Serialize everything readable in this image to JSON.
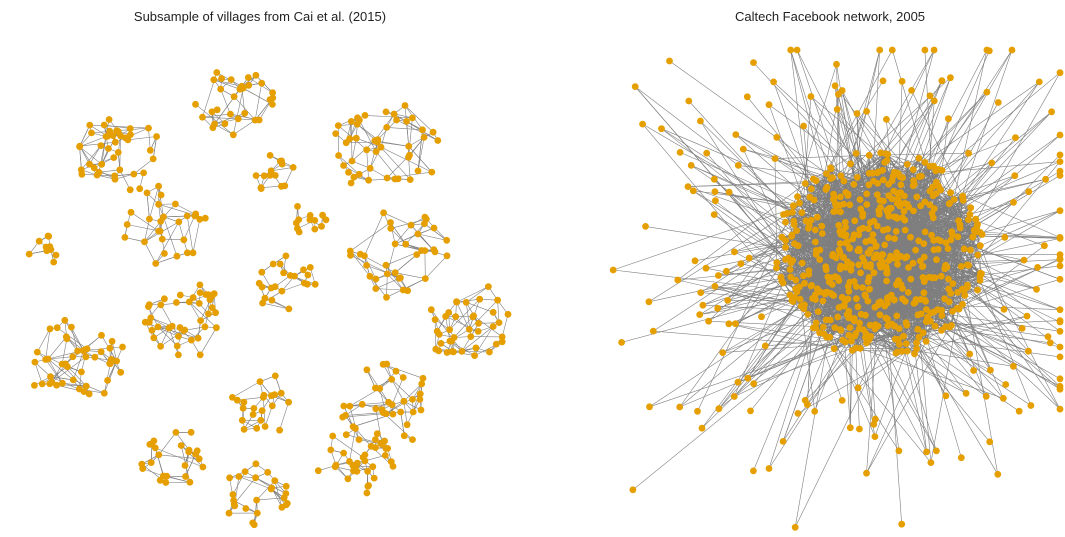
{
  "panels": [
    {
      "title": "Subsample of villages from Cai et al. (2015)"
    },
    {
      "title": "Caltech Facebook network, 2005"
    }
  ]
}
